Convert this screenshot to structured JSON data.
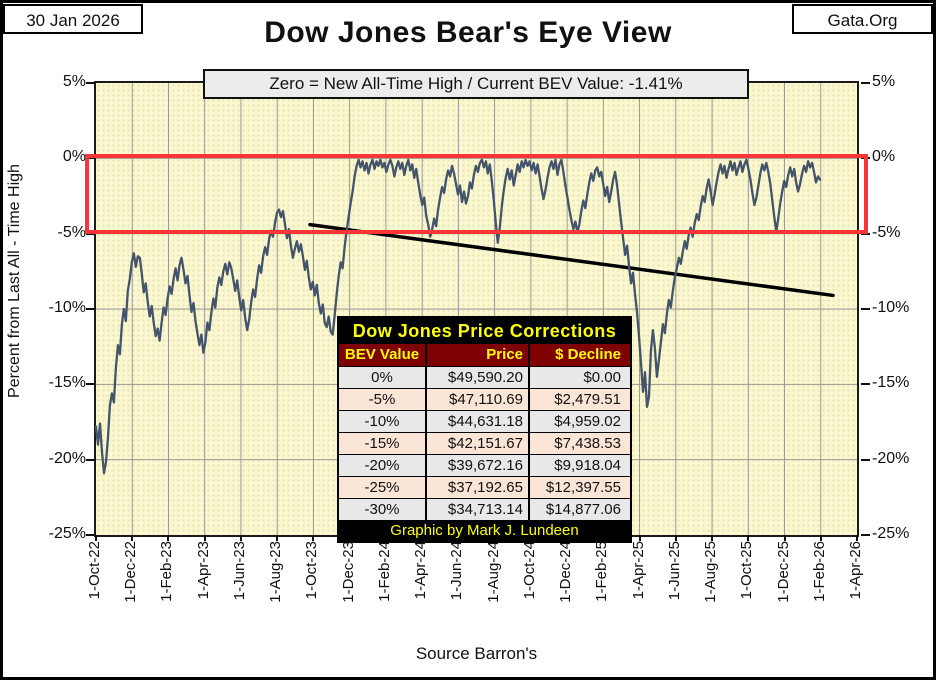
{
  "header": {
    "date": "30 Jan 2026",
    "site": "Gata.Org",
    "title": "Dow Jones Bear's Eye View",
    "subtitle": "Zero = New All-Time High / Current BEV Value:  -1.41%"
  },
  "footer": {
    "source": "Source Barron's"
  },
  "chart_data": {
    "type": "line",
    "title": "Dow Jones Bear's Eye View",
    "ylabel": "Percent from  Last All - Time  High",
    "ylim": [
      -25,
      5
    ],
    "grid": "on",
    "y_ticks": [
      {
        "value": 5,
        "label": "5%"
      },
      {
        "value": 0,
        "label": "0%"
      },
      {
        "value": -5,
        "label": "-5%"
      },
      {
        "value": -10,
        "label": "-10%"
      },
      {
        "value": -15,
        "label": "-15%"
      },
      {
        "value": -20,
        "label": "-20%"
      },
      {
        "value": -25,
        "label": "-25%"
      }
    ],
    "x_ticks": [
      "1-Oct-22",
      "1-Dec-22",
      "1-Feb-23",
      "1-Apr-23",
      "1-Jun-23",
      "1-Aug-23",
      "1-Oct-23",
      "1-Dec-23",
      "1-Feb-24",
      "1-Apr-24",
      "1-Jun-24",
      "1-Aug-24",
      "1-Oct-24",
      "1-Dec-24",
      "1-Feb-25",
      "1-Apr-25",
      "1-Jun-25",
      "1-Aug-25",
      "1-Oct-25",
      "1-Dec-25",
      "1-Feb-26",
      "1-Apr-26"
    ],
    "highlight_band": {
      "from": 0,
      "to": -5,
      "color": "#F93535",
      "meaning": "0% to -5% BEV zone"
    },
    "trendline": {
      "x1_frac": 0.2812,
      "y1": -4.4,
      "x2_frac": 0.9685,
      "y2": -9.1,
      "color": "#000000"
    },
    "colors": {
      "line": "#44546A",
      "background": "#FBF8CF",
      "grid": "#999999"
    },
    "series": {
      "name": "Dow Jones Bear's Eye View (% from last all-time high)",
      "start": "1-Oct-22",
      "end": "30-Jan-26",
      "end_frac": 0.9514,
      "current_value": -1.41,
      "values": [
        -17.8,
        -19.0,
        -17.6,
        -19.5,
        -20.9,
        -20.2,
        -18.6,
        -16.4,
        -15.6,
        -16.2,
        -13.9,
        -12.4,
        -13.0,
        -11.0,
        -10.0,
        -10.8,
        -8.8,
        -8.0,
        -6.9,
        -6.3,
        -7.2,
        -6.5,
        -6.6,
        -7.6,
        -8.9,
        -8.3,
        -9.5,
        -10.5,
        -9.8,
        -10.9,
        -11.8,
        -11.3,
        -12.1,
        -10.9,
        -9.9,
        -10.4,
        -9.3,
        -8.5,
        -9.0,
        -8.0,
        -7.3,
        -8.1,
        -7.1,
        -6.6,
        -7.4,
        -8.3,
        -7.8,
        -9.1,
        -10.2,
        -9.6,
        -10.8,
        -11.6,
        -12.4,
        -11.7,
        -12.9,
        -12.2,
        -10.9,
        -11.4,
        -10.2,
        -9.3,
        -9.9,
        -8.6,
        -7.9,
        -8.4,
        -7.5,
        -7.0,
        -7.7,
        -6.9,
        -7.3,
        -8.0,
        -8.8,
        -8.1,
        -9.2,
        -10.1,
        -9.4,
        -10.6,
        -11.4,
        -10.7,
        -9.6,
        -8.7,
        -9.2,
        -8.0,
        -7.1,
        -7.6,
        -6.5,
        -5.9,
        -6.4,
        -5.4,
        -4.8,
        -5.2,
        -4.3,
        -3.6,
        -3.4,
        -3.9,
        -3.5,
        -4.4,
        -5.3,
        -4.7,
        -5.8,
        -6.6,
        -6.0,
        -5.5,
        -6.2,
        -5.7,
        -6.5,
        -7.4,
        -6.8,
        -7.9,
        -8.7,
        -8.2,
        -9.1,
        -8.4,
        -9.6,
        -10.3,
        -9.7,
        -10.9,
        -11.2,
        -10.5,
        -11.5,
        -11.7,
        -10.4,
        -9.0,
        -7.8,
        -6.9,
        -7.3,
        -5.9,
        -4.8,
        -3.9,
        -3.0,
        -2.2,
        -1.2,
        -0.5,
        -0.1,
        -0.6,
        -0.2,
        -0.8,
        -0.3,
        -1.0,
        -0.4,
        -0.1,
        -0.7,
        -0.2,
        -0.5,
        -0.1,
        -0.6,
        -0.3,
        -0.9,
        -0.4,
        -0.1,
        -0.5,
        -1.2,
        -0.6,
        -0.2,
        -0.7,
        -0.3,
        -1.1,
        -0.5,
        -0.1,
        -0.8,
        -0.4,
        -1.3,
        -0.7,
        -1.6,
        -2.4,
        -3.1,
        -2.6,
        -3.8,
        -4.4,
        -5.2,
        -4.7,
        -4.0,
        -4.5,
        -3.4,
        -2.6,
        -1.9,
        -2.3,
        -1.4,
        -0.8,
        -1.2,
        -0.5,
        -1.0,
        -1.7,
        -2.4,
        -1.8,
        -2.9,
        -2.2,
        -3.0,
        -2.5,
        -1.6,
        -2.0,
        -1.1,
        -0.5,
        -0.9,
        -0.3,
        -0.1,
        -0.6,
        -0.2,
        -1.0,
        -0.4,
        -1.5,
        -2.8,
        -4.3,
        -5.6,
        -4.6,
        -3.2,
        -2.1,
        -1.3,
        -0.7,
        -1.4,
        -0.8,
        -1.8,
        -1.1,
        -0.4,
        -0.9,
        -0.2,
        -0.6,
        -0.1,
        -0.5,
        -0.2,
        -0.8,
        -0.3,
        -1.0,
        -0.4,
        -1.2,
        -2.0,
        -2.7,
        -2.1,
        -1.3,
        -0.6,
        -0.2,
        -0.7,
        -0.1,
        -1.1,
        -0.4,
        -0.1,
        -0.9,
        -1.8,
        -2.6,
        -3.4,
        -4.1,
        -4.7,
        -4.2,
        -4.9,
        -4.4,
        -3.5,
        -2.8,
        -3.3,
        -2.4,
        -1.6,
        -1.0,
        -1.5,
        -0.8,
        -0.6,
        -1.2,
        -0.9,
        -1.7,
        -2.5,
        -1.9,
        -2.9,
        -2.2,
        -1.4,
        -0.9,
        -1.8,
        -3.0,
        -4.2,
        -5.3,
        -6.4,
        -5.8,
        -7.2,
        -8.3,
        -7.6,
        -9.0,
        -10.2,
        -11.8,
        -13.6,
        -15.5,
        -14.2,
        -16.5,
        -15.8,
        -12.8,
        -11.4,
        -12.6,
        -14.5,
        -13.4,
        -12.2,
        -11.0,
        -11.6,
        -10.3,
        -9.4,
        -9.9,
        -8.8,
        -7.9,
        -7.3,
        -6.6,
        -7.0,
        -6.2,
        -5.5,
        -6.0,
        -5.1,
        -4.6,
        -5.2,
        -4.3,
        -3.7,
        -4.1,
        -3.2,
        -2.5,
        -2.9,
        -2.0,
        -1.4,
        -2.2,
        -3.1,
        -2.4,
        -1.6,
        -0.9,
        -0.4,
        -1.0,
        -0.5,
        -1.3,
        -0.7,
        -0.2,
        -0.8,
        -0.3,
        -1.1,
        -0.6,
        -0.2,
        -0.9,
        -0.4,
        -0.1,
        -0.7,
        -1.4,
        -2.3,
        -3.1,
        -2.6,
        -1.8,
        -1.0,
        -0.4,
        -0.8,
        -0.3,
        -0.9,
        -1.7,
        -2.8,
        -3.9,
        -4.9,
        -4.0,
        -3.0,
        -2.2,
        -1.5,
        -1.9,
        -1.1,
        -0.6,
        -1.2,
        -0.7,
        -1.6,
        -2.2,
        -1.7,
        -1.0,
        -0.5,
        -0.9,
        -0.2,
        -0.6,
        -0.3,
        -0.9,
        -1.6,
        -1.2,
        -1.41
      ]
    }
  },
  "table": {
    "title": "Dow Jones Price Corrections",
    "columns": [
      "BEV Value",
      "Price",
      "$ Decline"
    ],
    "rows": [
      [
        "0%",
        "$49,590.20",
        "$0.00"
      ],
      [
        "-5%",
        "$47,110.69",
        "$2,479.51"
      ],
      [
        "-10%",
        "$44,631.18",
        "$4,959.02"
      ],
      [
        "-15%",
        "$42,151.67",
        "$7,438.53"
      ],
      [
        "-20%",
        "$39,672.16",
        "$9,918.04"
      ],
      [
        "-25%",
        "$37,192.65",
        "$12,397.55"
      ],
      [
        "-30%",
        "$34,713.14",
        "$14,877.06"
      ]
    ],
    "footer": "Graphic by Mark J. Lundeen"
  }
}
